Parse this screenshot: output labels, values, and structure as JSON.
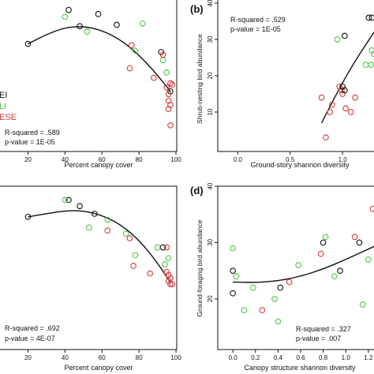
{
  "colors": {
    "black": "#111111",
    "green": "#52c24a",
    "red": "#d43a3a"
  },
  "legend": [
    {
      "label": "EI",
      "color": "#111111"
    },
    {
      "label": "LI",
      "color": "#52c24a"
    },
    {
      "label": "ESE",
      "color": "#d43a3a"
    }
  ],
  "chart_data": [
    {
      "panel": "a",
      "panel_label": "",
      "type": "scatter",
      "xlabel": "Percent canopy cover",
      "ylabel": "",
      "xlim": [
        10,
        100
      ],
      "ylim": [
        0,
        10
      ],
      "xticks": [
        20,
        40,
        60,
        80,
        100
      ],
      "yticks": [],
      "stat_r2": "R-squared = .589",
      "stat_p": "p-value = 1E-05",
      "fit": [
        [
          20,
          7.0
        ],
        [
          30,
          7.7
        ],
        [
          40,
          8.2
        ],
        [
          50,
          8.3
        ],
        [
          60,
          8.0
        ],
        [
          70,
          7.3
        ],
        [
          80,
          6.2
        ],
        [
          90,
          4.7
        ],
        [
          97,
          3.5
        ]
      ],
      "points": [
        {
          "x": 20,
          "y": 7.0,
          "g": "black"
        },
        {
          "x": 42,
          "y": 9.5,
          "g": "black"
        },
        {
          "x": 48,
          "y": 8.3,
          "g": "black"
        },
        {
          "x": 58,
          "y": 9.2,
          "g": "black"
        },
        {
          "x": 68,
          "y": 8.4,
          "g": "black"
        },
        {
          "x": 92,
          "y": 6.4,
          "g": "black"
        },
        {
          "x": 97,
          "y": 3.5,
          "g": "black"
        },
        {
          "x": 40,
          "y": 9.0,
          "g": "green"
        },
        {
          "x": 52,
          "y": 7.9,
          "g": "green"
        },
        {
          "x": 78,
          "y": 6.5,
          "g": "green"
        },
        {
          "x": 82,
          "y": 8.5,
          "g": "green"
        },
        {
          "x": 93,
          "y": 5.8,
          "g": "green"
        },
        {
          "x": 95,
          "y": 4.9,
          "g": "green"
        },
        {
          "x": 76,
          "y": 6.9,
          "g": "red"
        },
        {
          "x": 75,
          "y": 5.2,
          "g": "red"
        },
        {
          "x": 88,
          "y": 4.5,
          "g": "red"
        },
        {
          "x": 93,
          "y": 6.2,
          "g": "red"
        },
        {
          "x": 95,
          "y": 3.8,
          "g": "red"
        },
        {
          "x": 96,
          "y": 3.3,
          "g": "red"
        },
        {
          "x": 96,
          "y": 2.8,
          "g": "red"
        },
        {
          "x": 97,
          "y": 2.5,
          "g": "red"
        },
        {
          "x": 96,
          "y": 2.2,
          "g": "red"
        },
        {
          "x": 97,
          "y": 4.1,
          "g": "red"
        },
        {
          "x": 97,
          "y": 1.0,
          "g": "red"
        },
        {
          "x": 98,
          "y": 4.0,
          "g": "red"
        }
      ]
    },
    {
      "panel": "b",
      "panel_label": "(b)",
      "type": "scatter",
      "xlabel": "Ground-story shannon diversity",
      "ylabel": "Shrub-nesting bird abundance",
      "xlim": [
        -0.1,
        1.3
      ],
      "ylim": [
        0,
        40
      ],
      "xticks": [
        0.0,
        0.5,
        1.0
      ],
      "yticks": [
        10,
        20,
        30,
        40
      ],
      "stat_r2": "R-squared = .529",
      "stat_p": "p-value = 1E-05",
      "fit": [
        [
          0.8,
          7
        ],
        [
          1.05,
          21
        ],
        [
          1.3,
          32
        ]
      ],
      "points": [
        {
          "x": 0.8,
          "y": 14,
          "g": "red"
        },
        {
          "x": 0.84,
          "y": 3,
          "g": "red"
        },
        {
          "x": 0.88,
          "y": 10,
          "g": "red"
        },
        {
          "x": 0.9,
          "y": 12,
          "g": "red"
        },
        {
          "x": 0.97,
          "y": 17,
          "g": "red"
        },
        {
          "x": 0.99,
          "y": 16,
          "g": "red"
        },
        {
          "x": 1.0,
          "y": 15,
          "g": "red"
        },
        {
          "x": 1.03,
          "y": 11,
          "g": "red"
        },
        {
          "x": 1.08,
          "y": 10,
          "g": "red"
        },
        {
          "x": 1.12,
          "y": 14,
          "g": "red"
        },
        {
          "x": 1.0,
          "y": 17,
          "g": "black"
        },
        {
          "x": 1.02,
          "y": 16,
          "g": "black"
        },
        {
          "x": 1.02,
          "y": 31,
          "g": "black"
        },
        {
          "x": 1.25,
          "y": 36,
          "g": "black"
        },
        {
          "x": 1.28,
          "y": 36,
          "g": "black"
        },
        {
          "x": 0.95,
          "y": 30,
          "g": "green"
        },
        {
          "x": 1.22,
          "y": 23,
          "g": "green"
        },
        {
          "x": 1.27,
          "y": 23,
          "g": "green"
        },
        {
          "x": 1.28,
          "y": 27,
          "g": "green"
        },
        {
          "x": 1.3,
          "y": 26,
          "g": "green"
        }
      ]
    },
    {
      "panel": "c",
      "panel_label": "",
      "type": "scatter",
      "xlabel": "Percent canopy cover",
      "ylabel": "",
      "xlim": [
        10,
        100
      ],
      "ylim": [
        0,
        10
      ],
      "xticks": [
        20,
        40,
        60,
        80,
        100
      ],
      "yticks": [],
      "stat_r2": "R-squared = .692",
      "stat_p": "p-value = 4E-07",
      "fit": [
        [
          20,
          8.0
        ],
        [
          30,
          8.2
        ],
        [
          40,
          8.4
        ],
        [
          50,
          8.4
        ],
        [
          60,
          8.1
        ],
        [
          70,
          7.5
        ],
        [
          80,
          6.5
        ],
        [
          90,
          5.0
        ],
        [
          97,
          3.7
        ]
      ],
      "points": [
        {
          "x": 20,
          "y": 8.0,
          "g": "black"
        },
        {
          "x": 42,
          "y": 9.1,
          "g": "black"
        },
        {
          "x": 48,
          "y": 8.7,
          "g": "black"
        },
        {
          "x": 56,
          "y": 8.2,
          "g": "black"
        },
        {
          "x": 93,
          "y": 6.0,
          "g": "black"
        },
        {
          "x": 40,
          "y": 9.1,
          "g": "green"
        },
        {
          "x": 53,
          "y": 7.3,
          "g": "green"
        },
        {
          "x": 63,
          "y": 7.8,
          "g": "green"
        },
        {
          "x": 73,
          "y": 6.9,
          "g": "green"
        },
        {
          "x": 78,
          "y": 5.5,
          "g": "green"
        },
        {
          "x": 90,
          "y": 6.0,
          "g": "green"
        },
        {
          "x": 94,
          "y": 4.9,
          "g": "green"
        },
        {
          "x": 96,
          "y": 5.3,
          "g": "green"
        },
        {
          "x": 63,
          "y": 7.1,
          "g": "red"
        },
        {
          "x": 75,
          "y": 6.6,
          "g": "red"
        },
        {
          "x": 77,
          "y": 4.8,
          "g": "red"
        },
        {
          "x": 86,
          "y": 4.3,
          "g": "red"
        },
        {
          "x": 95,
          "y": 6.0,
          "g": "red"
        },
        {
          "x": 95,
          "y": 4.4,
          "g": "red"
        },
        {
          "x": 96,
          "y": 3.8,
          "g": "red"
        },
        {
          "x": 96,
          "y": 4.2,
          "g": "red"
        },
        {
          "x": 97,
          "y": 3.6,
          "g": "red"
        },
        {
          "x": 97,
          "y": 4.0,
          "g": "red"
        },
        {
          "x": 98,
          "y": 3.6,
          "g": "red"
        }
      ]
    },
    {
      "panel": "d",
      "panel_label": "(d)",
      "type": "scatter",
      "xlabel": "Canopy structure shannon diversity",
      "ylabel": "Ground-foraging bird abundance",
      "xlim": [
        -0.05,
        1.25
      ],
      "ylim": [
        12,
        40
      ],
      "xticks": [
        0.0,
        0.2,
        0.4,
        0.6,
        0.8,
        1.0,
        1.2
      ],
      "yticks": [
        20,
        30,
        40
      ],
      "stat_r2": "R-squared = .327",
      "stat_p": "p-value = .007",
      "fit": [
        [
          0.0,
          23
        ],
        [
          0.2,
          22.9
        ],
        [
          0.4,
          23.2
        ],
        [
          0.6,
          24
        ],
        [
          0.8,
          25.3
        ],
        [
          1.0,
          27.0
        ],
        [
          1.25,
          29.3
        ]
      ],
      "points": [
        {
          "x": 0.0,
          "y": 25,
          "g": "black"
        },
        {
          "x": 0.0,
          "y": 21,
          "g": "black"
        },
        {
          "x": 0.42,
          "y": 22,
          "g": "black"
        },
        {
          "x": 0.8,
          "y": 30,
          "g": "black"
        },
        {
          "x": 0.95,
          "y": 25,
          "g": "black"
        },
        {
          "x": 1.12,
          "y": 30,
          "g": "black"
        },
        {
          "x": 0.0,
          "y": 29,
          "g": "green"
        },
        {
          "x": 0.03,
          "y": 24,
          "g": "green"
        },
        {
          "x": 0.1,
          "y": 18,
          "g": "green"
        },
        {
          "x": 0.18,
          "y": 22,
          "g": "green"
        },
        {
          "x": 0.37,
          "y": 20,
          "g": "green"
        },
        {
          "x": 0.4,
          "y": 16,
          "g": "green"
        },
        {
          "x": 0.58,
          "y": 26,
          "g": "green"
        },
        {
          "x": 0.82,
          "y": 31,
          "g": "green"
        },
        {
          "x": 0.9,
          "y": 24,
          "g": "green"
        },
        {
          "x": 1.15,
          "y": 19,
          "g": "green"
        },
        {
          "x": 1.2,
          "y": 27,
          "g": "green"
        },
        {
          "x": 0.26,
          "y": 18,
          "g": "red"
        },
        {
          "x": 0.5,
          "y": 23,
          "g": "red"
        },
        {
          "x": 0.78,
          "y": 28,
          "g": "red"
        },
        {
          "x": 1.08,
          "y": 31,
          "g": "red"
        },
        {
          "x": 1.24,
          "y": 36,
          "g": "red"
        }
      ]
    }
  ]
}
